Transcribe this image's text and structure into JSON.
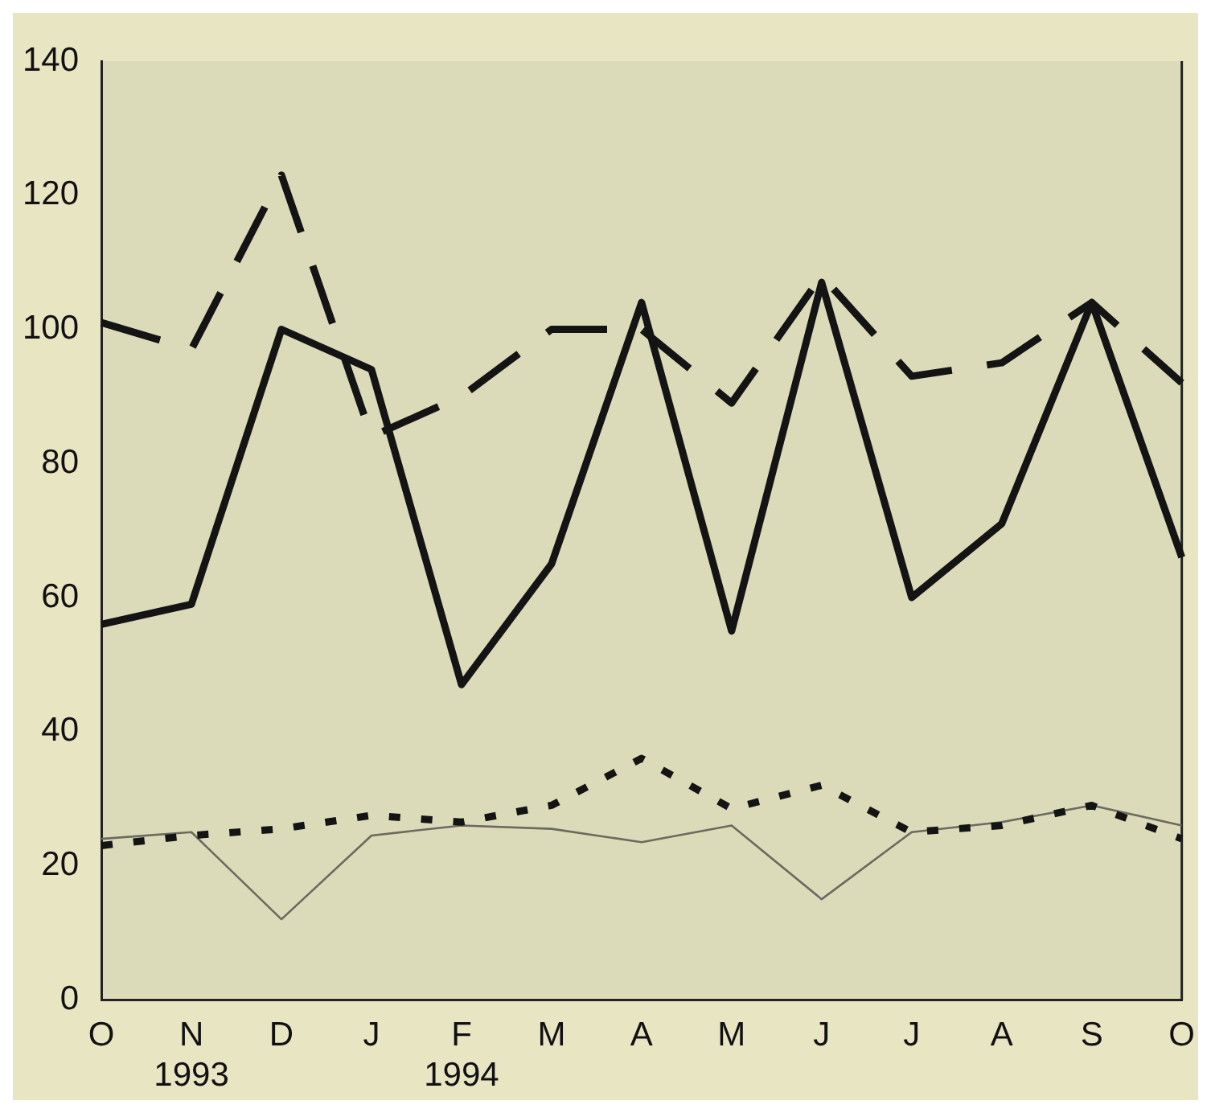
{
  "chart_data": {
    "type": "line",
    "categories": [
      "O",
      "N\n1993",
      "D",
      "J",
      "F\n1994",
      "M",
      "A",
      "M",
      "J",
      "J",
      "A",
      "S",
      "O"
    ],
    "series": [
      {
        "color": "#141414",
        "line_style": "solid",
        "values": [
          56,
          59,
          100,
          94,
          47,
          65,
          104,
          55,
          107,
          60,
          71,
          104,
          66
        ]
      },
      {
        "color": "#141414",
        "line_style": "dashed",
        "values": [
          101,
          97,
          123,
          84,
          90,
          100,
          100,
          89,
          108,
          93,
          95,
          104,
          92
        ]
      },
      {
        "color": "#141414",
        "line_style": "dotted",
        "values": [
          23,
          24.5,
          25.5,
          27.5,
          26.5,
          29,
          36,
          28.5,
          32,
          25,
          26,
          29,
          24
        ]
      },
      {
        "color": "#6a6a60",
        "line_style": "solid",
        "values": [
          24,
          25,
          12,
          24.5,
          26,
          25.5,
          23.5,
          26,
          15,
          25,
          26.5,
          29,
          26
        ]
      }
    ],
    "ylim": [
      0,
      140
    ],
    "yticks": [
      0,
      20,
      40,
      60,
      80,
      100,
      120,
      140
    ],
    "grid": false,
    "legend": false,
    "marker": "none"
  }
}
